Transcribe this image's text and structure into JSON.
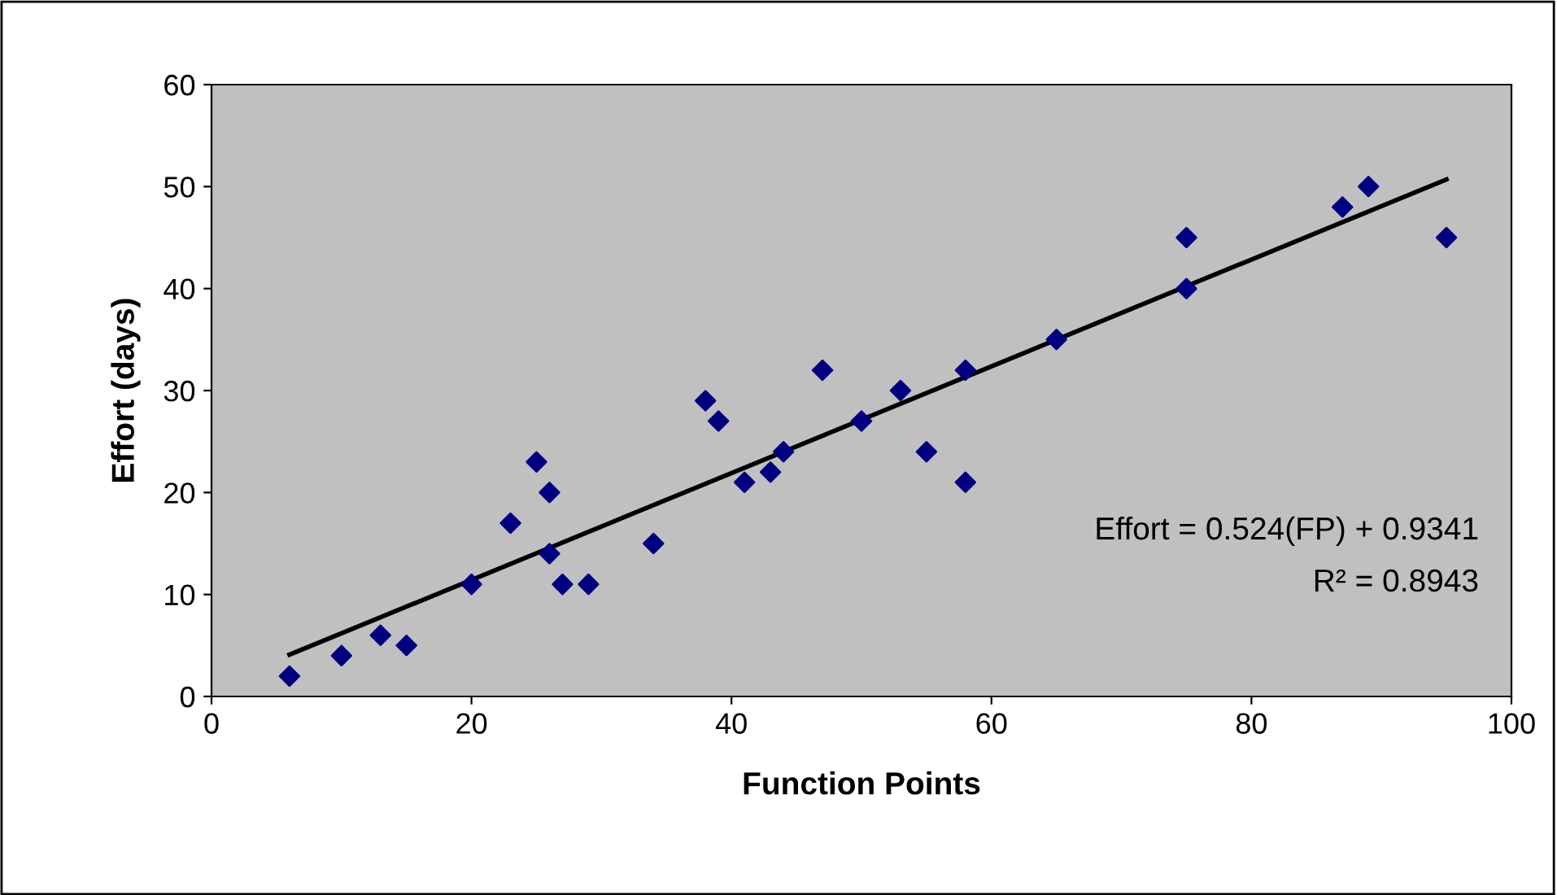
{
  "chart_data": {
    "type": "scatter",
    "xlabel": "Function Points",
    "ylabel": "Effort (days)",
    "xlim": [
      0,
      100
    ],
    "xticks": [
      0,
      20,
      40,
      60,
      80,
      100
    ],
    "ylim": [
      0,
      60
    ],
    "yticks": [
      0,
      10,
      20,
      30,
      40,
      50,
      60
    ],
    "grid": false,
    "legend": false,
    "marker": "diamond",
    "annotations": [
      "Effort = 0.524(FP) + 0.9341",
      "R² = 0.8943"
    ],
    "series": [
      {
        "color": "#000080",
        "x": [
          6,
          10,
          13,
          15,
          20,
          23,
          25,
          26,
          26,
          27,
          29,
          34,
          38,
          39,
          41,
          43,
          44,
          47,
          50,
          53,
          55,
          58,
          58,
          65,
          75,
          75,
          87,
          89,
          95
        ],
        "values": [
          2,
          4,
          6,
          5,
          11,
          17,
          23,
          20,
          14,
          11,
          11,
          15,
          29,
          27,
          21,
          22,
          24,
          32,
          27,
          30,
          24,
          32,
          21,
          35,
          45,
          40,
          48,
          50,
          45
        ]
      },
      {
        "type": "line",
        "color": "#000000",
        "marker": "none",
        "x": [
          6,
          95
        ],
        "values": [
          4.1,
          50.7
        ]
      }
    ]
  }
}
